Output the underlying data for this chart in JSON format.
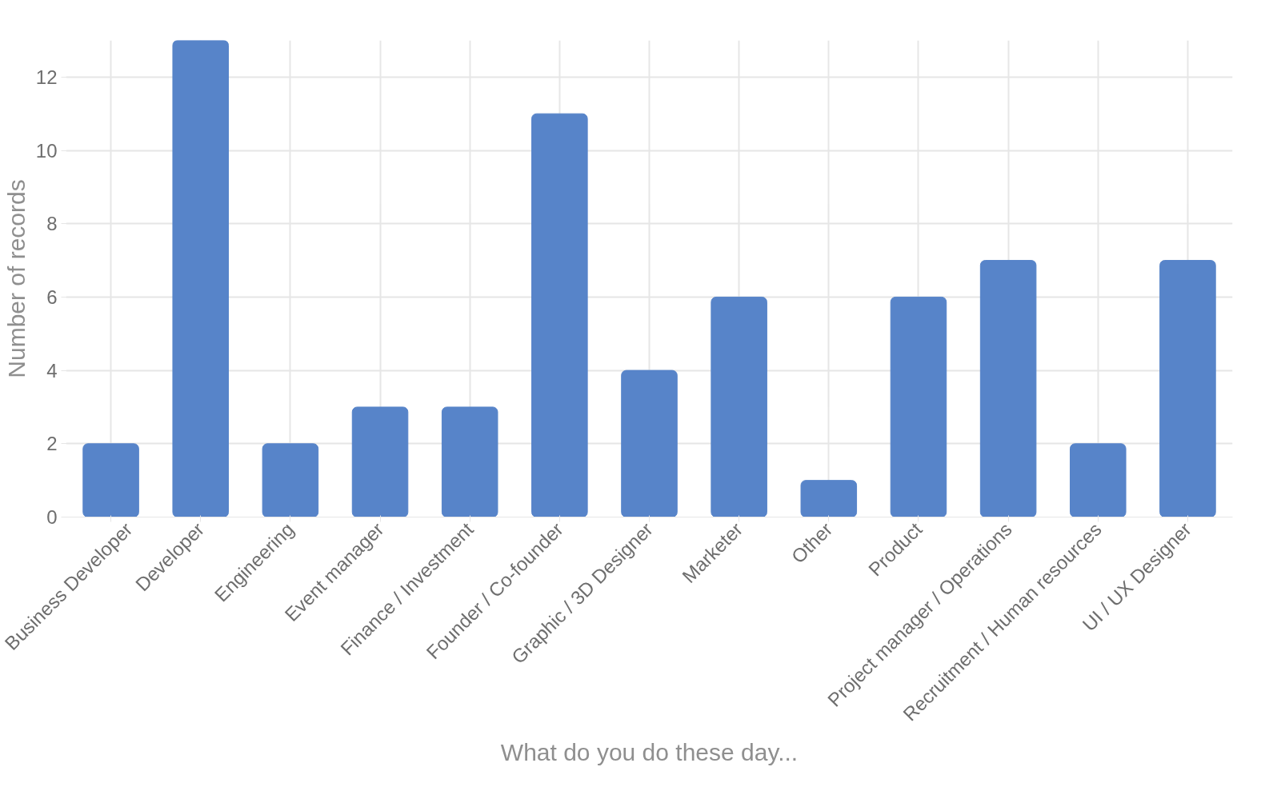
{
  "chart_data": {
    "type": "bar",
    "xlabel": "What do you do these day...",
    "ylabel": "Number of records",
    "categories": [
      "Business Developer",
      "Developer",
      "Engineering",
      "Event manager",
      "Finance / Investment",
      "Founder / Co-founder",
      "Graphic / 3D Designer",
      "Marketer",
      "Other",
      "Product",
      "Project manager / Operations",
      "Recruitment / Human resources",
      "UI / UX Designer"
    ],
    "values": [
      2,
      13,
      2,
      3,
      3,
      11,
      4,
      6,
      1,
      6,
      7,
      2,
      7
    ],
    "color": "#5784c9",
    "ylim": [
      0,
      13
    ],
    "yticks": [
      0,
      2,
      4,
      6,
      8,
      10,
      12
    ],
    "grid": true
  }
}
